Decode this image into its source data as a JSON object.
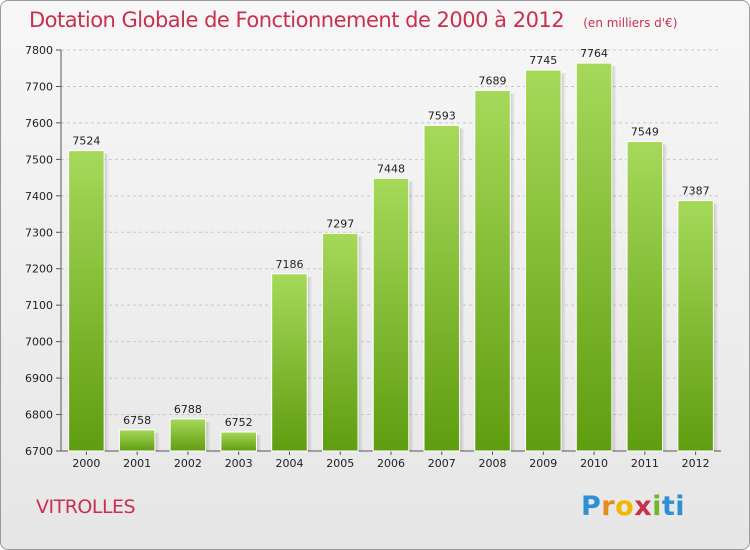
{
  "header": {
    "title": "Dotation Globale de Fonctionnement de 2000 à 2012",
    "unit": "(en milliers d'€)"
  },
  "footer": {
    "commune": "VITROLLES",
    "logo": [
      "P",
      "r",
      "o",
      "x",
      "i",
      "ti"
    ]
  },
  "chart_data": {
    "type": "bar",
    "title": "Dotation Globale de Fonctionnement de 2000 à 2012",
    "subtitle": "(en milliers d'€)",
    "xlabel": "",
    "ylabel": "",
    "categories": [
      "2000",
      "2001",
      "2002",
      "2003",
      "2004",
      "2005",
      "2006",
      "2007",
      "2008",
      "2009",
      "2010",
      "2011",
      "2012"
    ],
    "values": [
      7524,
      6758,
      6788,
      6752,
      7186,
      7297,
      7448,
      7593,
      7689,
      7745,
      7764,
      7549,
      7387
    ],
    "ylim": [
      6700,
      7800
    ],
    "yticks": [
      6700,
      6800,
      6900,
      7000,
      7100,
      7200,
      7300,
      7400,
      7500,
      7600,
      7700,
      7800
    ],
    "grid": true,
    "legend": "none",
    "colors": {
      "bar_top": "#a6d95a",
      "bar_bottom": "#5f9d10",
      "grid": "#c8c8c8"
    }
  }
}
